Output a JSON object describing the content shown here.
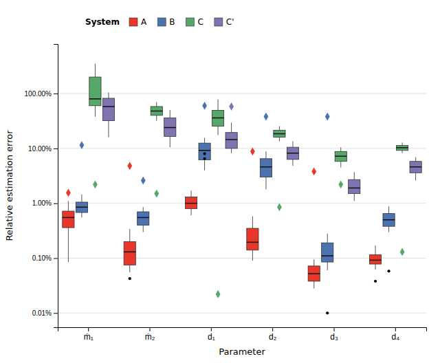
{
  "chart_data": {
    "type": "box",
    "xlabel": "Parameter",
    "ylabel": "Relative estimation error",
    "categories": [
      "ṁ₁",
      "ṁ₂",
      "d₁",
      "d₂",
      "d₃",
      "d₄"
    ],
    "legend_title": "System",
    "legend": "top",
    "log": "y",
    "grid": true,
    "ylim": [
      5.5e-05,
      8.0
    ],
    "yticks": [
      {
        "value": 0.0001,
        "label": "0.01%"
      },
      {
        "value": 0.001,
        "label": "0.10%"
      },
      {
        "value": 0.01,
        "label": "1.00%"
      },
      {
        "value": 0.1,
        "label": "10.00%"
      },
      {
        "value": 1.0,
        "label": "100.00%"
      }
    ],
    "series": [
      {
        "name": "A",
        "color": "#e8372a",
        "whislo": [
          0.00085,
          0.00055,
          0.006,
          0.0009,
          0.00028,
          0.00062
        ],
        "q1": [
          0.0036,
          0.00075,
          0.008,
          0.0014,
          0.00038,
          0.00078
        ],
        "median": [
          0.0055,
          0.0013,
          0.01,
          0.00195,
          0.00052,
          0.00092
        ],
        "q3": [
          0.0072,
          0.002,
          0.013,
          0.0035,
          0.00072,
          0.00115
        ],
        "whishi": [
          0.011,
          0.0034,
          0.017,
          0.0058,
          0.00095,
          0.0017
        ],
        "outliers": [
          [
            0.0155
          ],
          [
            0.048
          ],
          [],
          [
            0.088
          ],
          [
            0.038
          ],
          []
        ],
        "dot_outliers": [
          [],
          [
            0.000425
          ],
          [],
          [],
          [],
          [
            0.00038
          ]
        ]
      },
      {
        "name": "B",
        "color": "#4c72b0",
        "whislo": [
          0.0055,
          0.003,
          0.04,
          0.018,
          0.0006,
          0.003
        ],
        "q1": [
          0.0068,
          0.004,
          0.062,
          0.03,
          0.00085,
          0.0038
        ],
        "median": [
          0.0085,
          0.0055,
          0.092,
          0.046,
          0.0011,
          0.005
        ],
        "q3": [
          0.0105,
          0.007,
          0.125,
          0.065,
          0.0019,
          0.0065
        ],
        "whishi": [
          0.0145,
          0.0085,
          0.155,
          0.088,
          0.0028,
          0.0088
        ],
        "outliers": [
          [
            0.115
          ],
          [
            0.026
          ],
          [
            0.6
          ],
          [
            0.38
          ],
          [
            0.38
          ],
          []
        ],
        "dot_outliers": [
          [],
          [],
          [
            0.065,
            0.08
          ],
          [],
          [
            0.0001
          ],
          [
            0.00058
          ]
        ]
      },
      {
        "name": "C",
        "color": "#55a868",
        "whislo": [
          0.38,
          0.32,
          0.175,
          0.135,
          0.045,
          0.082
        ],
        "q1": [
          0.6,
          0.4,
          0.255,
          0.16,
          0.058,
          0.092
        ],
        "median": [
          0.8,
          0.48,
          0.36,
          0.185,
          0.072,
          0.103
        ],
        "q3": [
          2.0,
          0.58,
          0.495,
          0.215,
          0.088,
          0.113
        ],
        "whishi": [
          3.5,
          0.7,
          0.78,
          0.255,
          0.105,
          0.128
        ],
        "outliers": [
          [
            0.022
          ],
          [
            0.015
          ],
          [
            0.00022
          ],
          [
            0.0085
          ],
          [
            0.022
          ],
          [
            0.0013
          ]
        ],
        "dot_outliers": [
          [],
          [],
          [],
          [],
          [],
          []
        ]
      },
      {
        "name": "C'",
        "color": "#8172b2",
        "whislo": [
          0.16,
          0.105,
          0.082,
          0.048,
          0.011,
          0.026
        ],
        "q1": [
          0.32,
          0.165,
          0.1,
          0.063,
          0.015,
          0.036
        ],
        "median": [
          0.58,
          0.24,
          0.145,
          0.082,
          0.019,
          0.046
        ],
        "q3": [
          0.82,
          0.36,
          0.195,
          0.105,
          0.027,
          0.058
        ],
        "whishi": [
          1.05,
          0.5,
          0.295,
          0.135,
          0.037,
          0.069
        ],
        "outliers": [
          [],
          [],
          [
            0.58
          ],
          [],
          [],
          []
        ],
        "dot_outliers": [
          [],
          [],
          [],
          [],
          [],
          []
        ]
      }
    ]
  }
}
